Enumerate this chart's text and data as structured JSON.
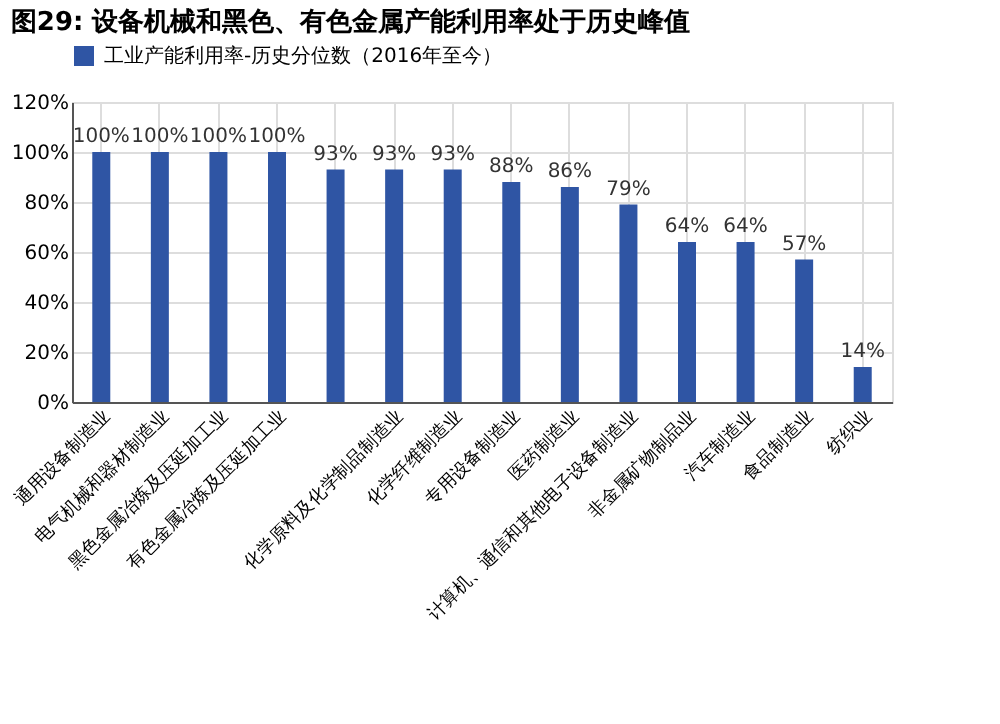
{
  "chart_data": {
    "type": "bar",
    "title": "图29: 设备机械和黑色、有色金属产能利用率处于历史峰值",
    "categories": [
      "通用设备制造业",
      "电气机械和器材制造业",
      "黑色金属冶炼及压延加工业",
      "有色金属冶炼及压延加工业",
      null,
      "化学原料及化学制品制造业",
      "化学纤维制造业",
      "专用设备制造业",
      "医药制造业",
      "计算机、通信和其他电子设备制造业",
      "非金属矿物制品业",
      "汽车制造业",
      "食品制造业",
      "纺织业"
    ],
    "series": [
      {
        "name": "工业产能利用率-历史分位数（2016年至今）",
        "color": "#2f55a4",
        "values": [
          100,
          100,
          100,
          100,
          93,
          93,
          93,
          88,
          86,
          79,
          64,
          64,
          57,
          14
        ],
        "value_labels": [
          "100%",
          "100%",
          "100%",
          "100%",
          "93%",
          "93%",
          "93%",
          "88%",
          "86%",
          "79%",
          "64%",
          "64%",
          "57%",
          "14%"
        ]
      }
    ],
    "ylim": [
      0,
      120
    ],
    "yticks": [
      {
        "value": 0,
        "label": "0%"
      },
      {
        "value": 20,
        "label": "20%"
      },
      {
        "value": 40,
        "label": "40%"
      },
      {
        "value": 60,
        "label": "60%"
      },
      {
        "value": 80,
        "label": "80%"
      },
      {
        "value": 100,
        "label": "100%"
      },
      {
        "value": 120,
        "label": "120%"
      }
    ],
    "grid": true,
    "legend": "top"
  }
}
